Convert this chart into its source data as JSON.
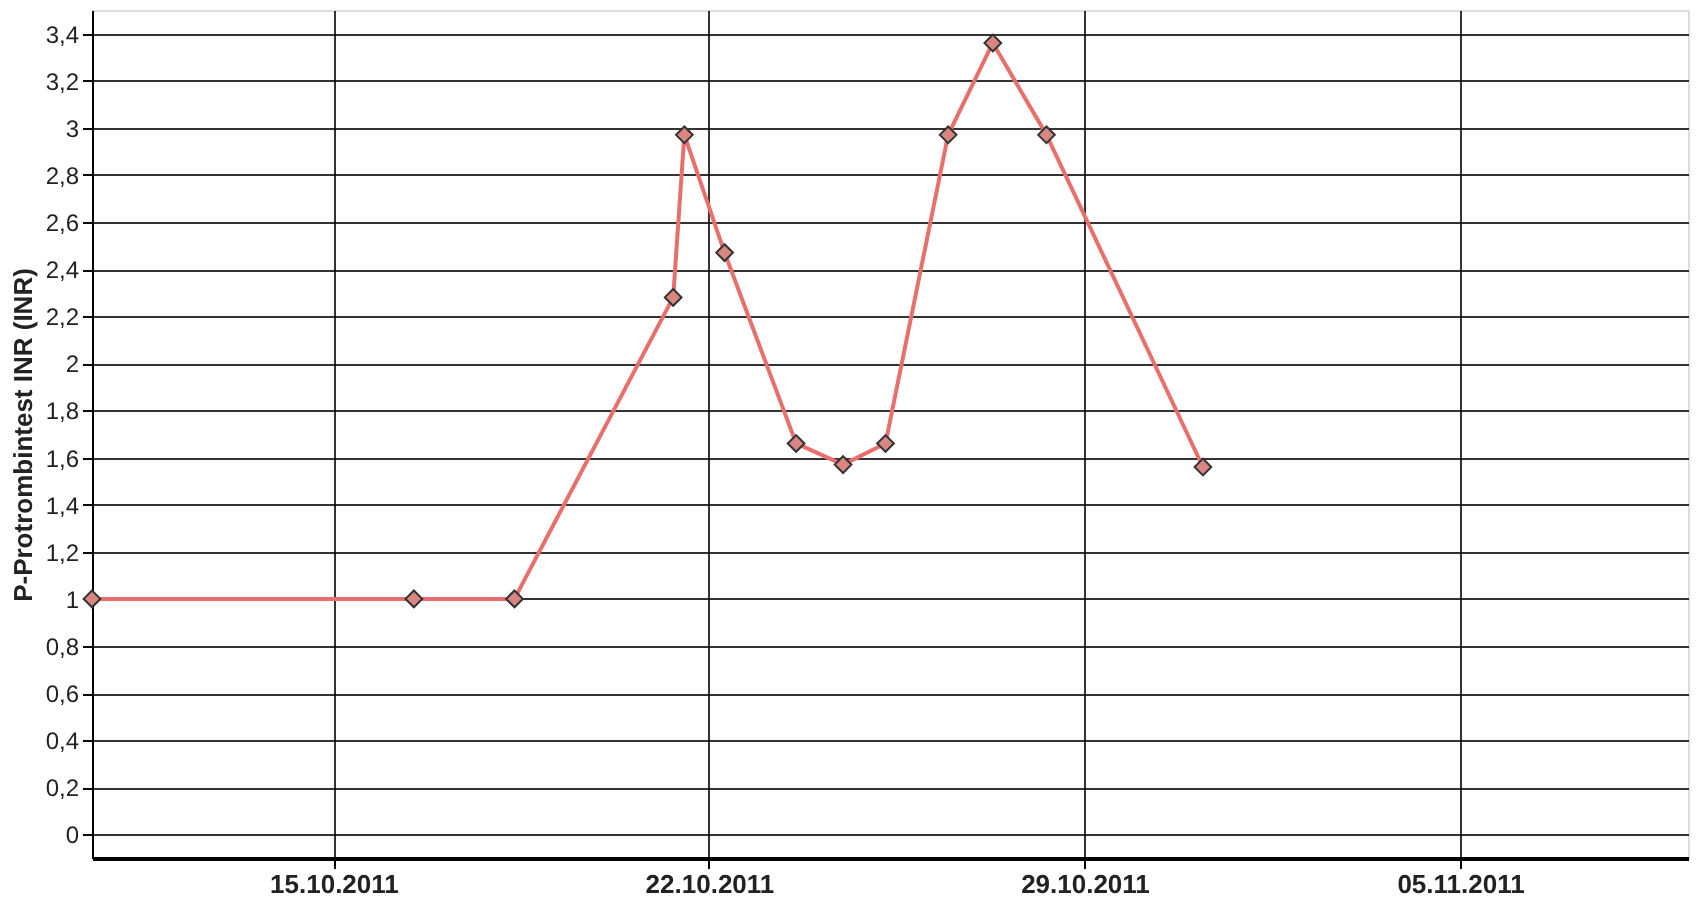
{
  "chart_data": {
    "type": "line",
    "ylabel": "P-Protrombintest INR (INR)",
    "x": [
      "2011-10-10T12:00",
      "2011-10-16T12:00",
      "2011-10-18T09:00",
      "2011-10-21T08:00",
      "2011-10-21T13:00",
      "2011-10-22T07:00",
      "2011-10-23T15:00",
      "2011-10-24T12:00",
      "2011-10-25T07:00",
      "2011-10-26T11:00",
      "2011-10-27T07:00",
      "2011-10-28T07:00",
      "2011-10-31T05:00"
    ],
    "series": [
      {
        "color": "#e8706c",
        "values": [
          1,
          1,
          1,
          2.28,
          2.97,
          2.47,
          1.66,
          1.57,
          1.66,
          2.97,
          3.36,
          2.97,
          1.56
        ]
      }
    ],
    "xlim": [
      "2011-10-10T12:00",
      "2011-11-09T06:00"
    ],
    "xticks": [
      {
        "value": "2011-10-15",
        "label": "15.10.2011"
      },
      {
        "value": "2011-10-22",
        "label": "22.10.2011"
      },
      {
        "value": "2011-10-29",
        "label": "29.10.2011"
      },
      {
        "value": "2011-11-05",
        "label": "05.11.2011"
      }
    ],
    "ylim": [
      -0.1,
      3.5
    ],
    "yticks": [
      0,
      {
        "value": 0.2,
        "label": "0,2"
      },
      {
        "value": 0.4,
        "label": "0,4"
      },
      {
        "value": 0.6,
        "label": "0,6"
      },
      {
        "value": 0.8,
        "label": "0,8"
      },
      1,
      {
        "value": 1.2,
        "label": "1,2"
      },
      {
        "value": 1.4,
        "label": "1,4"
      },
      {
        "value": 1.6,
        "label": "1,6"
      },
      {
        "value": 1.8,
        "label": "1,8"
      },
      2,
      {
        "value": 2.2,
        "label": "2,2"
      },
      {
        "value": 2.4,
        "label": "2,4"
      },
      {
        "value": 2.6,
        "label": "2,6"
      },
      {
        "value": 2.8,
        "label": "2,8"
      },
      3,
      {
        "value": 3.2,
        "label": "3,2"
      },
      {
        "value": 3.4,
        "label": "3,4"
      }
    ],
    "grid": true,
    "marker": "diamond",
    "line_style": "solid"
  }
}
